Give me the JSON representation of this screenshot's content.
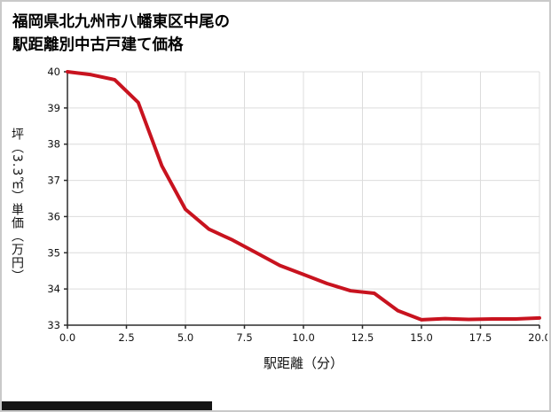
{
  "header": {
    "title_line1": "福岡県北九州市八幡東区中尾の",
    "title_line2": "駅距離別中古戸建て価格"
  },
  "chart_data": {
    "type": "line",
    "title": "福岡県北九州市八幡東区中尾の駅距離別中古戸建て価格",
    "xlabel": "駅距離（分）",
    "ylabel": "坪（3.3㎡）単価（万円）",
    "x": [
      0,
      1,
      2,
      3,
      4,
      5,
      6,
      7,
      8,
      9,
      10,
      11,
      12,
      13,
      14,
      15,
      16,
      17,
      18,
      19,
      20
    ],
    "y": [
      40.0,
      39.92,
      39.78,
      39.15,
      37.4,
      36.2,
      35.65,
      35.35,
      35.0,
      34.65,
      34.4,
      34.15,
      33.95,
      33.88,
      33.4,
      33.15,
      33.18,
      33.16,
      33.17,
      33.17,
      33.2
    ],
    "xlim": [
      0,
      20
    ],
    "ylim": [
      33,
      40
    ],
    "xticks": [
      0,
      2.5,
      5,
      7.5,
      10,
      12.5,
      15,
      17.5,
      20
    ],
    "xtick_labels": [
      "0.0",
      "2.5",
      "5.0",
      "7.5",
      "10.0",
      "12.5",
      "15.0",
      "17.5",
      "20.0"
    ],
    "yticks": [
      33,
      34,
      35,
      36,
      37,
      38,
      39,
      40
    ],
    "ytick_labels": [
      "33",
      "34",
      "35",
      "36",
      "37",
      "38",
      "39",
      "40"
    ],
    "grid": true,
    "legend": "none",
    "line_color": "#c8131f",
    "line_width": 4,
    "grid_color": "#dcdcdc",
    "axis_color": "#2b2b2b",
    "tick_label_color": "#111111"
  },
  "colors": {
    "page_border": "#c9c9c9",
    "background": "#ffffff",
    "title_text": "#000000",
    "footer_bar": "#151515"
  }
}
